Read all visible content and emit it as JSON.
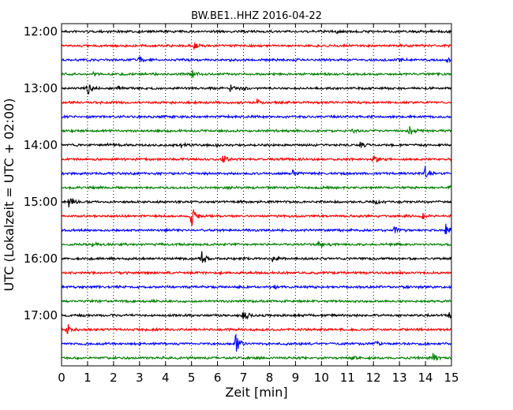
{
  "chart_data": {
    "type": "line",
    "title": "BW.BE1..HHZ 2016-04-22",
    "xlabel": "Zeit  [min]",
    "ylabel": "UTC (Lokalzeit = UTC + 02:00)",
    "xlim": [
      0,
      15
    ],
    "x_ticks": [
      "0",
      "1",
      "2",
      "3",
      "4",
      "5",
      "6",
      "7",
      "8",
      "9",
      "10",
      "11",
      "12",
      "13",
      "14",
      "15"
    ],
    "y_ticks": [
      "12:00",
      "13:00",
      "14:00",
      "15:00",
      "16:00",
      "17:00"
    ],
    "grid": "vertical dotted",
    "traces": [
      {
        "start": "12:00",
        "color": "#000000",
        "events": [
          [
            10.6,
            2
          ]
        ]
      },
      {
        "start": "12:15",
        "color": "#ff0000",
        "events": [
          [
            5.1,
            4
          ]
        ]
      },
      {
        "start": "12:30",
        "color": "#0000ff",
        "events": [
          [
            3.0,
            4
          ],
          [
            13.0,
            3
          ],
          [
            14.8,
            3
          ]
        ]
      },
      {
        "start": "12:45",
        "color": "#008000",
        "events": [
          [
            5.0,
            8
          ],
          [
            1.2,
            2
          ]
        ]
      },
      {
        "start": "13:00",
        "color": "#000000",
        "events": [
          [
            1.0,
            8
          ],
          [
            2.2,
            3
          ],
          [
            6.5,
            4
          ],
          [
            6.9,
            3
          ]
        ]
      },
      {
        "start": "13:15",
        "color": "#ff0000",
        "events": [
          [
            7.5,
            5
          ]
        ]
      },
      {
        "start": "13:30",
        "color": "#0000ff",
        "events": []
      },
      {
        "start": "13:45",
        "color": "#008000",
        "events": [
          [
            13.4,
            7
          ],
          [
            11.2,
            2
          ]
        ]
      },
      {
        "start": "14:00",
        "color": "#000000",
        "events": [
          [
            4.6,
            4
          ],
          [
            5.9,
            3
          ],
          [
            1.8,
            2
          ],
          [
            11.5,
            5
          ]
        ]
      },
      {
        "start": "14:15",
        "color": "#ff0000",
        "events": [
          [
            6.2,
            6
          ],
          [
            12.0,
            6
          ]
        ]
      },
      {
        "start": "14:30",
        "color": "#0000ff",
        "events": [
          [
            8.9,
            4
          ],
          [
            14.0,
            9
          ]
        ]
      },
      {
        "start": "14:45",
        "color": "#008000",
        "events": [
          [
            14.9,
            3
          ]
        ]
      },
      {
        "start": "15:00",
        "color": "#000000",
        "events": [
          [
            0.3,
            9
          ],
          [
            12.1,
            2
          ]
        ]
      },
      {
        "start": "15:15",
        "color": "#ff0000",
        "events": [
          [
            5.0,
            16
          ],
          [
            13.9,
            4
          ]
        ]
      },
      {
        "start": "15:30",
        "color": "#0000ff",
        "events": [
          [
            12.8,
            5
          ],
          [
            14.8,
            10
          ]
        ]
      },
      {
        "start": "15:45",
        "color": "#008000",
        "events": [
          [
            1.2,
            4
          ],
          [
            9.9,
            6
          ]
        ]
      },
      {
        "start": "16:00",
        "color": "#000000",
        "events": [
          [
            5.4,
            10
          ],
          [
            8.1,
            3
          ]
        ]
      },
      {
        "start": "16:15",
        "color": "#ff0000",
        "events": []
      },
      {
        "start": "16:30",
        "color": "#0000ff",
        "events": [
          [
            8.2,
            2
          ]
        ]
      },
      {
        "start": "16:45",
        "color": "#008000",
        "events": []
      },
      {
        "start": "17:00",
        "color": "#000000",
        "events": [
          [
            7.0,
            8
          ],
          [
            14.9,
            3
          ]
        ]
      },
      {
        "start": "17:15",
        "color": "#ff0000",
        "events": [
          [
            0.2,
            9
          ]
        ]
      },
      {
        "start": "17:30",
        "color": "#0000ff",
        "events": [
          [
            6.7,
            12
          ],
          [
            12.1,
            3
          ]
        ]
      },
      {
        "start": "17:45",
        "color": "#008000",
        "events": [
          [
            14.3,
            6
          ],
          [
            11.2,
            2
          ]
        ]
      }
    ]
  }
}
